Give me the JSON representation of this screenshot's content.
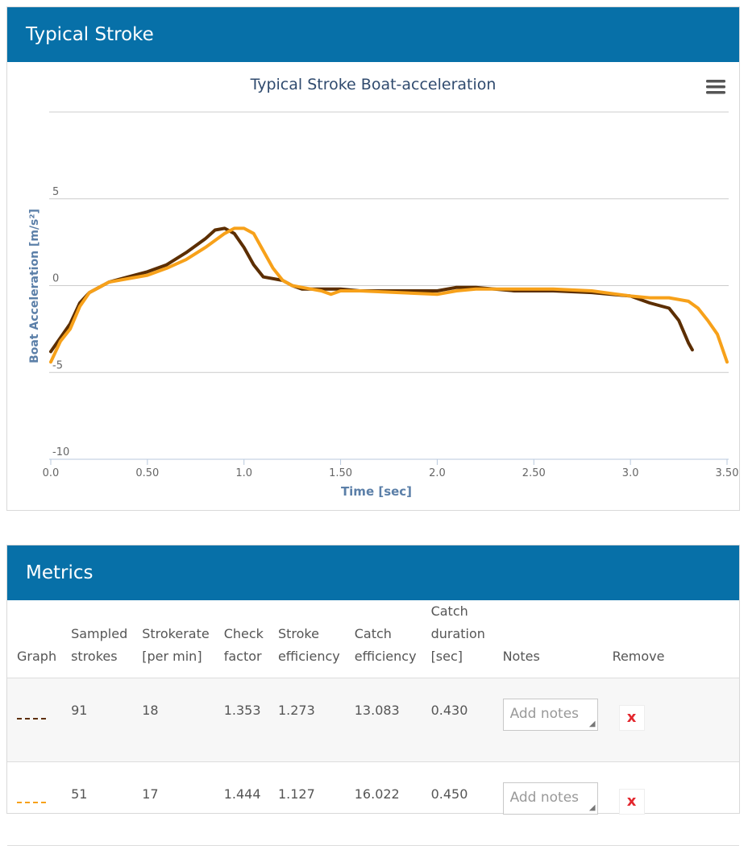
{
  "chart_panel": {
    "title": "Typical Stroke"
  },
  "chart_data": {
    "type": "line",
    "title": "Typical Stroke Boat-acceleration",
    "xlabel": "Time [sec]",
    "ylabel": "Boat Acceleration [m/s²]",
    "xlim": [
      0,
      3.5
    ],
    "ylim": [
      -10,
      10
    ],
    "x_ticks": [
      {
        "value": 0,
        "label": "0.0"
      },
      {
        "value": 0.5,
        "label": "0.50"
      },
      {
        "value": 1.0,
        "label": "1.0"
      },
      {
        "value": 1.5,
        "label": "1.50"
      },
      {
        "value": 2.0,
        "label": "2.0"
      },
      {
        "value": 2.5,
        "label": "2.50"
      },
      {
        "value": 3.0,
        "label": "3.0"
      },
      {
        "value": 3.5,
        "label": "3.50"
      }
    ],
    "y_ticks": [
      {
        "value": 5,
        "label": "5"
      },
      {
        "value": 0,
        "label": "0"
      },
      {
        "value": -5,
        "label": "-5"
      },
      {
        "value": -10,
        "label": "-10"
      }
    ],
    "grid": true,
    "series": [
      {
        "color": "#5c2e00",
        "points": [
          [
            0,
            -3.8
          ],
          [
            0.05,
            -3.0
          ],
          [
            0.1,
            -2.2
          ],
          [
            0.15,
            -1.0
          ],
          [
            0.2,
            -0.4
          ],
          [
            0.25,
            -0.1
          ],
          [
            0.3,
            0.2
          ],
          [
            0.4,
            0.5
          ],
          [
            0.5,
            0.8
          ],
          [
            0.6,
            1.2
          ],
          [
            0.7,
            1.9
          ],
          [
            0.8,
            2.7
          ],
          [
            0.85,
            3.2
          ],
          [
            0.9,
            3.3
          ],
          [
            0.95,
            3.0
          ],
          [
            1.0,
            2.2
          ],
          [
            1.05,
            1.2
          ],
          [
            1.1,
            0.5
          ],
          [
            1.2,
            0.3
          ],
          [
            1.25,
            0.0
          ],
          [
            1.3,
            -0.2
          ],
          [
            1.4,
            -0.2
          ],
          [
            1.5,
            -0.2
          ],
          [
            1.6,
            -0.3
          ],
          [
            1.8,
            -0.3
          ],
          [
            2.0,
            -0.3
          ],
          [
            2.1,
            -0.1
          ],
          [
            2.2,
            -0.1
          ],
          [
            2.4,
            -0.3
          ],
          [
            2.6,
            -0.3
          ],
          [
            2.8,
            -0.4
          ],
          [
            3.0,
            -0.6
          ],
          [
            3.1,
            -1.0
          ],
          [
            3.2,
            -1.3
          ],
          [
            3.25,
            -2.0
          ],
          [
            3.3,
            -3.3
          ],
          [
            3.32,
            -3.7
          ]
        ]
      },
      {
        "color": "#f7a11a",
        "points": [
          [
            0,
            -4.4
          ],
          [
            0.05,
            -3.2
          ],
          [
            0.1,
            -2.5
          ],
          [
            0.15,
            -1.2
          ],
          [
            0.2,
            -0.4
          ],
          [
            0.25,
            -0.1
          ],
          [
            0.3,
            0.2
          ],
          [
            0.4,
            0.4
          ],
          [
            0.5,
            0.6
          ],
          [
            0.6,
            1.0
          ],
          [
            0.7,
            1.5
          ],
          [
            0.8,
            2.2
          ],
          [
            0.9,
            3.0
          ],
          [
            0.95,
            3.3
          ],
          [
            1.0,
            3.3
          ],
          [
            1.05,
            3.0
          ],
          [
            1.1,
            2.0
          ],
          [
            1.15,
            1.0
          ],
          [
            1.2,
            0.3
          ],
          [
            1.25,
            0.0
          ],
          [
            1.3,
            -0.1
          ],
          [
            1.4,
            -0.3
          ],
          [
            1.45,
            -0.5
          ],
          [
            1.5,
            -0.3
          ],
          [
            1.6,
            -0.3
          ],
          [
            1.8,
            -0.4
          ],
          [
            2.0,
            -0.5
          ],
          [
            2.1,
            -0.3
          ],
          [
            2.2,
            -0.2
          ],
          [
            2.4,
            -0.2
          ],
          [
            2.6,
            -0.2
          ],
          [
            2.8,
            -0.3
          ],
          [
            3.0,
            -0.6
          ],
          [
            3.1,
            -0.7
          ],
          [
            3.2,
            -0.7
          ],
          [
            3.3,
            -0.9
          ],
          [
            3.35,
            -1.3
          ],
          [
            3.4,
            -2.0
          ],
          [
            3.45,
            -2.8
          ],
          [
            3.5,
            -4.4
          ]
        ]
      }
    ]
  },
  "metrics_panel": {
    "title": "Metrics",
    "headers": {
      "graph": "Graph",
      "sampled_l1": "Sampled",
      "sampled_l2": "strokes",
      "rate_l1": "Strokerate",
      "rate_l2": "[per min]",
      "check_l1": "Check",
      "check_l2": "factor",
      "seff_l1": "Stroke",
      "seff_l2": "efficiency",
      "ceff_l1": "Catch",
      "ceff_l2": "efficiency",
      "cdur_l1": "Catch",
      "cdur_l2": "duration",
      "cdur_l3": "[sec]",
      "notes": "Notes",
      "remove": "Remove"
    },
    "rows": [
      {
        "color": "#5c2e00",
        "sampled": "91",
        "rate": "18",
        "check": "1.353",
        "stroke_eff": "1.273",
        "catch_eff": "13.083",
        "catch_dur": "0.430",
        "notes_placeholder": "Add notes",
        "remove": "x"
      },
      {
        "color": "#f7a11a",
        "sampled": "51",
        "rate": "17",
        "check": "1.444",
        "stroke_eff": "1.127",
        "catch_eff": "16.022",
        "catch_dur": "0.450",
        "notes_placeholder": "Add notes",
        "remove": "x"
      }
    ]
  }
}
